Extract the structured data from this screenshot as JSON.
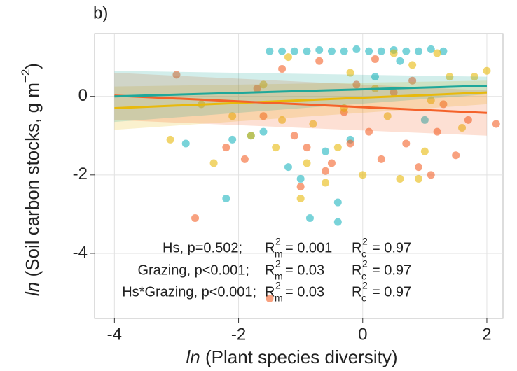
{
  "chart_data": {
    "type": "scatter",
    "panel_label": "b)",
    "x_label": {
      "italic": "ln",
      "text": " (Plant species diversity)"
    },
    "y_label": {
      "italic": "ln",
      "text": " (Soil carbon stocks, g m",
      "sup": "−2",
      "close": ")"
    },
    "xlim": [
      -4.32,
      2.26
    ],
    "ylim": [
      -5.66,
      1.6
    ],
    "xticks": [
      -4,
      -2,
      0,
      2
    ],
    "yticks": [
      -4,
      -2,
      0
    ],
    "grid": true,
    "series": [
      {
        "color": "#1fb5c0",
        "x": [
          -2.85,
          -2.2,
          -2.1,
          -1.5,
          -1.3,
          -1.1,
          -0.9,
          -0.7,
          -0.5,
          -0.3,
          -0.1,
          0.1,
          0.3,
          0.5,
          0.7,
          0.9,
          1.1,
          1.3,
          -1.6,
          -1.2,
          -0.85,
          -0.4,
          -0.4,
          -1.0,
          -0.6,
          0.2,
          0.6,
          1.0,
          -1.8,
          -0.2
        ],
        "values": [
          -1.2,
          -2.6,
          -1.1,
          1.15,
          1.15,
          1.15,
          1.15,
          1.18,
          1.15,
          1.15,
          1.2,
          1.15,
          1.15,
          1.18,
          1.15,
          1.15,
          1.2,
          1.15,
          -0.9,
          -1.8,
          -3.1,
          -3.2,
          -2.7,
          -2.1,
          -1.4,
          0.5,
          0.9,
          -0.6,
          -1.0,
          -1.1
        ]
      },
      {
        "color": "#f4622a",
        "x": [
          -3.0,
          -2.7,
          -2.2,
          -1.9,
          -1.7,
          -1.5,
          -1.3,
          -1.1,
          -0.9,
          -0.7,
          -0.5,
          -0.3,
          -0.1,
          0.1,
          0.3,
          0.5,
          0.7,
          0.9,
          1.1,
          1.3,
          1.5,
          1.7,
          2.15,
          -1.0,
          -0.6,
          0.2,
          0.8,
          1.2,
          -1.6,
          -0.2
        ],
        "values": [
          0.55,
          -3.1,
          -1.3,
          -1.6,
          0.2,
          -5.15,
          0.7,
          -1.0,
          -1.3,
          0.9,
          -1.7,
          -0.4,
          0.3,
          -0.9,
          -1.6,
          0.1,
          -1.2,
          -1.8,
          -2.0,
          -0.2,
          -1.5,
          -0.6,
          -0.7,
          -2.3,
          -1.9,
          0.95,
          0.4,
          -0.9,
          -0.5,
          -1.2
        ]
      },
      {
        "color": "#e8b90c",
        "x": [
          -3.1,
          -2.6,
          -2.4,
          -2.1,
          -1.8,
          -1.6,
          -1.4,
          -1.2,
          -1.0,
          -0.8,
          -0.6,
          -0.4,
          -0.2,
          0,
          0.2,
          0.4,
          0.6,
          0.8,
          1.0,
          1.2,
          1.4,
          1.6,
          1.8,
          2.0,
          -0.9,
          -0.3,
          0.5,
          1.1,
          -1.3,
          0.9
        ],
        "values": [
          -1.1,
          -0.2,
          -1.7,
          -0.5,
          -1.0,
          0.3,
          -1.3,
          1.0,
          -2.6,
          -0.7,
          -2.2,
          -1.3,
          0.6,
          -2.0,
          0.2,
          -0.5,
          -2.1,
          0.8,
          -1.4,
          1.1,
          0.5,
          -0.8,
          0.5,
          0.65,
          -1.7,
          -0.3,
          1.1,
          -0.1,
          -0.6,
          -2.1
        ]
      }
    ],
    "fits": [
      {
        "color": "#e8b90c",
        "x": [
          -4,
          2
        ],
        "values": [
          -0.3,
          0.1
        ],
        "lower": [
          -0.85,
          -0.2
        ],
        "upper": [
          0.25,
          0.4
        ]
      },
      {
        "color": "#f4622a",
        "x": [
          -4,
          2
        ],
        "values": [
          0.02,
          -0.42
        ],
        "lower": [
          -0.6,
          -1.0
        ],
        "upper": [
          0.6,
          0.15
        ]
      },
      {
        "color": "#1fa89a",
        "x": [
          -4,
          2
        ],
        "values": [
          0.0,
          0.27
        ],
        "lower": [
          -0.65,
          0.05
        ],
        "upper": [
          0.65,
          0.5
        ]
      }
    ],
    "annotations": [
      {
        "test": "Hs, p=0.502;",
        "terms": [
          {
            "base": "R",
            "sup": "2",
            "sub": "m",
            "value": "= 0.001"
          },
          {
            "base": "R",
            "sup": "2",
            "sub": "c",
            "value": "= 0.97"
          }
        ]
      },
      {
        "test": "Grazing, p<0.001;",
        "terms": [
          {
            "base": "R",
            "sup": "2",
            "sub": "m",
            "value": "= 0.03"
          },
          {
            "base": "R",
            "sup": "2",
            "sub": "c",
            "value": "= 0.97"
          }
        ]
      },
      {
        "test": "Hs*Grazing, p<0.001;",
        "terms": [
          {
            "base": "R",
            "sup": "2",
            "sub": "m",
            "value": "= 0.03"
          },
          {
            "base": "R",
            "sup": "2",
            "sub": "c",
            "value": "= 0.97"
          }
        ]
      }
    ]
  }
}
